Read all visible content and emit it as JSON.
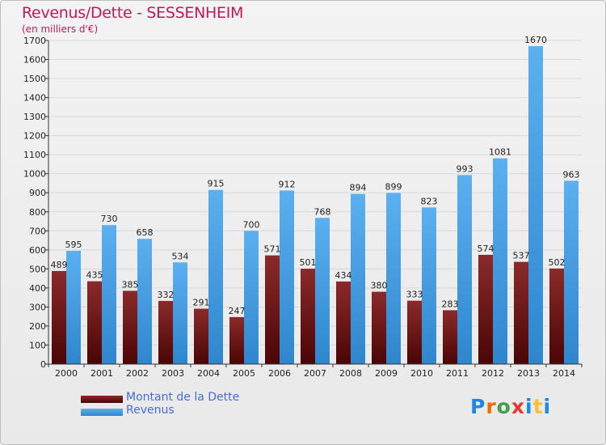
{
  "title": "Revenus/Dette - SESSENHEIM",
  "subtitle": "(en milliers d'€)",
  "logo": {
    "letters": [
      "P",
      "r",
      "o",
      "x",
      "i",
      "t",
      "i"
    ],
    "colors": [
      "#1e88e5",
      "#ef6c00",
      "#43a047",
      "#e53935",
      "#1e88e5",
      "#fbc02d",
      "#1e88e5"
    ]
  },
  "colors": {
    "dette": "#6e1616",
    "revenus": "#3d9be0"
  },
  "chart_data": {
    "type": "bar",
    "title": "Revenus/Dette - SESSENHEIM",
    "ylabel": "(en milliers d'€)",
    "categories": [
      "2000",
      "2001",
      "2002",
      "2003",
      "2004",
      "2005",
      "2006",
      "2007",
      "2008",
      "2009",
      "2010",
      "2011",
      "2012",
      "2013",
      "2014"
    ],
    "ylim": [
      0,
      1700
    ],
    "yticks": [
      0,
      100,
      200,
      300,
      400,
      500,
      600,
      700,
      800,
      900,
      1000,
      1100,
      1200,
      1300,
      1400,
      1500,
      1600,
      1700
    ],
    "grid": true,
    "legend_position": "bottom-left",
    "series": [
      {
        "name": "Montant de la Dette",
        "values": [
          489,
          435,
          385,
          332,
          291,
          247,
          571,
          501,
          434,
          380,
          333,
          283,
          574,
          537,
          502
        ]
      },
      {
        "name": "Revenus",
        "values": [
          595,
          730,
          658,
          534,
          915,
          700,
          912,
          768,
          894,
          899,
          823,
          993,
          1081,
          1670,
          963
        ]
      }
    ]
  }
}
